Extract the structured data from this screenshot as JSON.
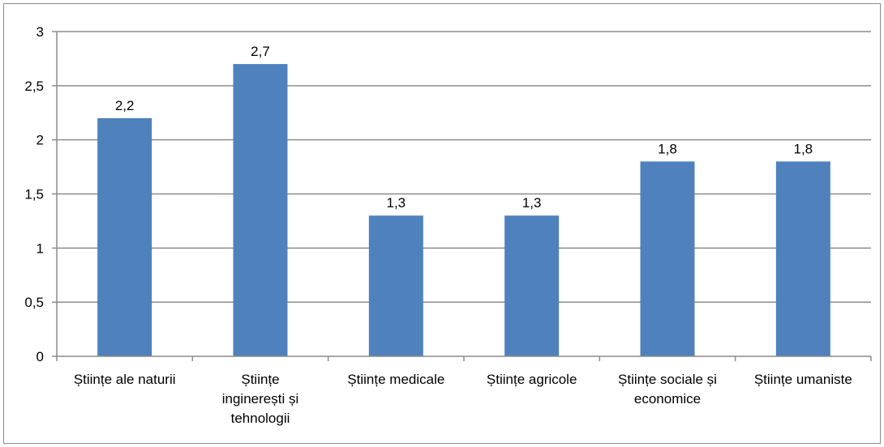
{
  "chart_data": {
    "type": "bar",
    "title": "",
    "xlabel": "",
    "ylabel": "",
    "ylim": [
      0,
      3
    ],
    "yticks": [
      "0",
      "0,5",
      "1",
      "1,5",
      "2",
      "2,5",
      "3"
    ],
    "ytick_values": [
      0,
      0.5,
      1,
      1.5,
      2,
      2.5,
      3
    ],
    "grid": true,
    "legend": "none",
    "bar_color": "#4f81bd",
    "categories": [
      [
        "Științe ale naturii"
      ],
      [
        "Științe",
        "inginerești și",
        "tehnologii"
      ],
      [
        "Științe medicale"
      ],
      [
        "Științe agricole"
      ],
      [
        "Științe sociale și",
        "economice"
      ],
      [
        "Științe umaniste"
      ]
    ],
    "values": [
      2.2,
      2.7,
      1.3,
      1.3,
      1.8,
      1.8
    ],
    "data_labels": [
      "2,2",
      "2,7",
      "1,3",
      "1,3",
      "1,8",
      "1,8"
    ]
  }
}
